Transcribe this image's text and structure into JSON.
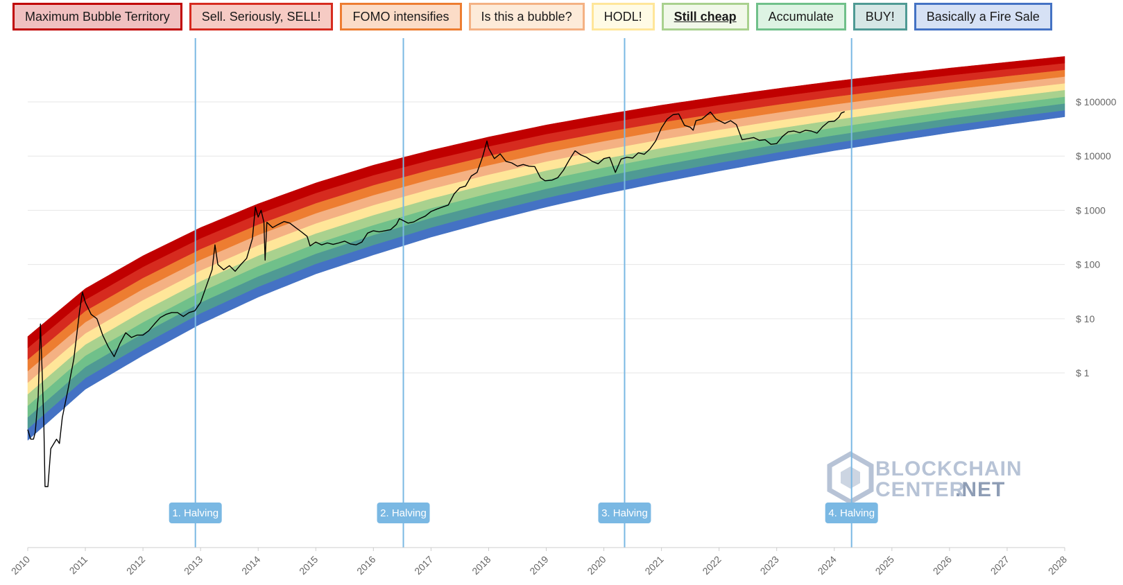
{
  "legend": {
    "active_index": 5,
    "items": [
      {
        "label": "Maximum Bubble Territory",
        "border": "#c00000",
        "fill": "#f0c0c0"
      },
      {
        "label": "Sell. Seriously, SELL!",
        "border": "#d62b1f",
        "fill": "#f6cbc4"
      },
      {
        "label": "FOMO intensifies",
        "border": "#ed7d31",
        "fill": "#fbdcc7"
      },
      {
        "label": "Is this a bubble?",
        "border": "#f4b183",
        "fill": "#fdebd9"
      },
      {
        "label": "HODL!",
        "border": "#ffe699",
        "fill": "#fffbe5"
      },
      {
        "label": "Still cheap",
        "border": "#a9d18e",
        "fill": "#f1f8e9"
      },
      {
        "label": "Accumulate",
        "border": "#70c08a",
        "fill": "#ddf3e3"
      },
      {
        "label": "BUY!",
        "border": "#4f9a94",
        "fill": "#d6e7e6"
      },
      {
        "label": "Basically a Fire Sale",
        "border": "#4472c4",
        "fill": "#d6e1f5"
      }
    ]
  },
  "watermark": {
    "line1": "BLOCKCHAIN",
    "line2": "CENTER",
    "line3": ".NET"
  },
  "chart_data": {
    "type": "area",
    "x_axis": {
      "ticks": [
        "2010",
        "2011",
        "2012",
        "2013",
        "2014",
        "2015",
        "2016",
        "2017",
        "2018",
        "2019",
        "2020",
        "2021",
        "2022",
        "2023",
        "2024",
        "2025",
        "2026",
        "2027",
        "2028"
      ],
      "range": [
        2010,
        2028
      ]
    },
    "y_axis": {
      "scale": "log",
      "ticks": [
        {
          "value": 1,
          "label": "$ 1"
        },
        {
          "value": 10,
          "label": "$ 10"
        },
        {
          "value": 100,
          "label": "$ 100"
        },
        {
          "value": 1000,
          "label": "$ 1000"
        },
        {
          "value": 10000,
          "label": "$ 10000"
        },
        {
          "value": 100000,
          "label": "$ 100000"
        }
      ],
      "range": [
        0.0006,
        1500000
      ]
    },
    "grid": true,
    "band_colors": [
      "#4472c4",
      "#4f9a94",
      "#70c08a",
      "#a9d18e",
      "#ffe699",
      "#f4b183",
      "#ed7d31",
      "#d62b1f",
      "#c00000"
    ],
    "band_lower": [
      [
        2010.0,
        0.057
      ],
      [
        2011.0,
        0.5
      ],
      [
        2012.0,
        2.1
      ],
      [
        2013.0,
        8.0
      ],
      [
        2014.0,
        25.0
      ],
      [
        2015.0,
        67.0
      ],
      [
        2016.0,
        150.0
      ],
      [
        2017.0,
        320.0
      ],
      [
        2018.0,
        620.0
      ],
      [
        2019.0,
        1150.0
      ],
      [
        2020.0,
        2000.0
      ],
      [
        2021.0,
        3300.0
      ],
      [
        2022.0,
        5300.0
      ],
      [
        2023.0,
        8300.0
      ],
      [
        2024.0,
        12600.0
      ],
      [
        2025.0,
        18600.0
      ],
      [
        2026.0,
        27000.0
      ],
      [
        2027.0,
        38000.0
      ],
      [
        2028.0,
        53000.0
      ]
    ],
    "band_upper": [
      [
        2010.0,
        4.7
      ],
      [
        2011.0,
        36.0
      ],
      [
        2012.0,
        145.0
      ],
      [
        2013.0,
        480.0
      ],
      [
        2014.0,
        1320.0
      ],
      [
        2015.0,
        3200.0
      ],
      [
        2016.0,
        6800.0
      ],
      [
        2017.0,
        12800.0
      ],
      [
        2018.0,
        22500.0
      ],
      [
        2019.0,
        37500.0
      ],
      [
        2020.0,
        58000.0
      ],
      [
        2021.0,
        87000.0
      ],
      [
        2022.0,
        125000.0
      ],
      [
        2023.0,
        175000.0
      ],
      [
        2024.0,
        240000.0
      ],
      [
        2025.0,
        320000.0
      ],
      [
        2026.0,
        420000.0
      ],
      [
        2027.0,
        540000.0
      ],
      [
        2028.0,
        690000.0
      ]
    ],
    "price": [
      [
        2010.0,
        0.09
      ],
      [
        2010.05,
        0.06
      ],
      [
        2010.1,
        0.06
      ],
      [
        2010.13,
        0.08
      ],
      [
        2010.18,
        0.35
      ],
      [
        2010.22,
        8.0
      ],
      [
        2010.25,
        1.0
      ],
      [
        2010.28,
        0.1
      ],
      [
        2010.3,
        0.008
      ],
      [
        2010.35,
        0.008
      ],
      [
        2010.4,
        0.04
      ],
      [
        2010.5,
        0.06
      ],
      [
        2010.55,
        0.05
      ],
      [
        2010.6,
        0.15
      ],
      [
        2010.7,
        0.5
      ],
      [
        2010.8,
        1.8
      ],
      [
        2010.9,
        14.0
      ],
      [
        2010.95,
        31.0
      ],
      [
        2011.0,
        20.0
      ],
      [
        2011.1,
        12.0
      ],
      [
        2011.2,
        10.0
      ],
      [
        2011.3,
        5.0
      ],
      [
        2011.4,
        3.0
      ],
      [
        2011.5,
        2.0
      ],
      [
        2011.6,
        3.5
      ],
      [
        2011.7,
        5.5
      ],
      [
        2011.75,
        5.0
      ],
      [
        2011.8,
        4.5
      ],
      [
        2011.9,
        5.0
      ],
      [
        2012.0,
        5.0
      ],
      [
        2012.1,
        6.0
      ],
      [
        2012.2,
        8.0
      ],
      [
        2012.3,
        10.5
      ],
      [
        2012.4,
        12.0
      ],
      [
        2012.5,
        13.0
      ],
      [
        2012.6,
        13.0
      ],
      [
        2012.7,
        11.0
      ],
      [
        2012.8,
        13.0
      ],
      [
        2012.9,
        14.0
      ],
      [
        2013.0,
        20.0
      ],
      [
        2013.1,
        40.0
      ],
      [
        2013.2,
        80.0
      ],
      [
        2013.25,
        230.0
      ],
      [
        2013.3,
        100.0
      ],
      [
        2013.4,
        80.0
      ],
      [
        2013.5,
        95.0
      ],
      [
        2013.6,
        75.0
      ],
      [
        2013.7,
        100.0
      ],
      [
        2013.8,
        130.0
      ],
      [
        2013.9,
        300.0
      ],
      [
        2013.95,
        1150.0
      ],
      [
        2014.0,
        750.0
      ],
      [
        2014.05,
        1000.0
      ],
      [
        2014.1,
        600.0
      ],
      [
        2014.12,
        120.0
      ],
      [
        2014.15,
        600.0
      ],
      [
        2014.25,
        480.0
      ],
      [
        2014.35,
        550.0
      ],
      [
        2014.45,
        620.0
      ],
      [
        2014.55,
        580.0
      ],
      [
        2014.65,
        480.0
      ],
      [
        2014.75,
        400.0
      ],
      [
        2014.85,
        330.0
      ],
      [
        2014.9,
        220.0
      ],
      [
        2015.0,
        260.0
      ],
      [
        2015.1,
        230.0
      ],
      [
        2015.2,
        250.0
      ],
      [
        2015.3,
        235.0
      ],
      [
        2015.4,
        250.0
      ],
      [
        2015.5,
        270.0
      ],
      [
        2015.6,
        240.0
      ],
      [
        2015.7,
        230.0
      ],
      [
        2015.8,
        260.0
      ],
      [
        2015.9,
        380.0
      ],
      [
        2016.0,
        420.0
      ],
      [
        2016.1,
        400.0
      ],
      [
        2016.2,
        420.0
      ],
      [
        2016.3,
        440.0
      ],
      [
        2016.4,
        550.0
      ],
      [
        2016.45,
        700.0
      ],
      [
        2016.5,
        660.0
      ],
      [
        2016.6,
        580.0
      ],
      [
        2016.7,
        610.0
      ],
      [
        2016.8,
        700.0
      ],
      [
        2016.9,
        780.0
      ],
      [
        2017.0,
        950.0
      ],
      [
        2017.1,
        1050.0
      ],
      [
        2017.2,
        1150.0
      ],
      [
        2017.3,
        1250.0
      ],
      [
        2017.4,
        2000.0
      ],
      [
        2017.5,
        2600.0
      ],
      [
        2017.6,
        2800.0
      ],
      [
        2017.7,
        4300.0
      ],
      [
        2017.8,
        5000.0
      ],
      [
        2017.9,
        10000.0
      ],
      [
        2017.97,
        19000.0
      ],
      [
        2018.0,
        14000.0
      ],
      [
        2018.1,
        9000.0
      ],
      [
        2018.2,
        11000.0
      ],
      [
        2018.3,
        8000.0
      ],
      [
        2018.4,
        7500.0
      ],
      [
        2018.5,
        6500.0
      ],
      [
        2018.6,
        7000.0
      ],
      [
        2018.7,
        6500.0
      ],
      [
        2018.8,
        6400.0
      ],
      [
        2018.9,
        4000.0
      ],
      [
        2018.98,
        3500.0
      ],
      [
        2019.1,
        3600.0
      ],
      [
        2019.2,
        4000.0
      ],
      [
        2019.3,
        5500.0
      ],
      [
        2019.4,
        8500.0
      ],
      [
        2019.5,
        12500.0
      ],
      [
        2019.6,
        10500.0
      ],
      [
        2019.7,
        9500.0
      ],
      [
        2019.8,
        8000.0
      ],
      [
        2019.9,
        7200.0
      ],
      [
        2020.0,
        9000.0
      ],
      [
        2020.1,
        9500.0
      ],
      [
        2020.2,
        5000.0
      ],
      [
        2020.3,
        8800.0
      ],
      [
        2020.4,
        9500.0
      ],
      [
        2020.5,
        9200.0
      ],
      [
        2020.6,
        11500.0
      ],
      [
        2020.7,
        10800.0
      ],
      [
        2020.8,
        13500.0
      ],
      [
        2020.9,
        19000.0
      ],
      [
        2021.0,
        33000.0
      ],
      [
        2021.1,
        48000.0
      ],
      [
        2021.2,
        58000.0
      ],
      [
        2021.3,
        60000.0
      ],
      [
        2021.4,
        37000.0
      ],
      [
        2021.5,
        34000.0
      ],
      [
        2021.55,
        30000.0
      ],
      [
        2021.6,
        45000.0
      ],
      [
        2021.7,
        48000.0
      ],
      [
        2021.85,
        65000.0
      ],
      [
        2021.95,
        48000.0
      ],
      [
        2022.1,
        40000.0
      ],
      [
        2022.2,
        45000.0
      ],
      [
        2022.3,
        38000.0
      ],
      [
        2022.4,
        20000.0
      ],
      [
        2022.5,
        21000.0
      ],
      [
        2022.6,
        22000.0
      ],
      [
        2022.7,
        19500.0
      ],
      [
        2022.8,
        20000.0
      ],
      [
        2022.9,
        16500.0
      ],
      [
        2023.0,
        17000.0
      ],
      [
        2023.1,
        23000.0
      ],
      [
        2023.2,
        28000.0
      ],
      [
        2023.3,
        29000.0
      ],
      [
        2023.4,
        27000.0
      ],
      [
        2023.5,
        30000.0
      ],
      [
        2023.6,
        29000.0
      ],
      [
        2023.7,
        26500.0
      ],
      [
        2023.8,
        35000.0
      ],
      [
        2023.9,
        43000.0
      ],
      [
        2024.0,
        44000.0
      ],
      [
        2024.08,
        52000.0
      ],
      [
        2024.12,
        62000.0
      ],
      [
        2024.18,
        66000.0
      ]
    ],
    "halvings": [
      {
        "x": 2012.91,
        "label": "1. Halving"
      },
      {
        "x": 2016.52,
        "label": "2. Halving"
      },
      {
        "x": 2020.36,
        "label": "3. Halving"
      },
      {
        "x": 2024.3,
        "label": "4. Halving"
      }
    ]
  }
}
